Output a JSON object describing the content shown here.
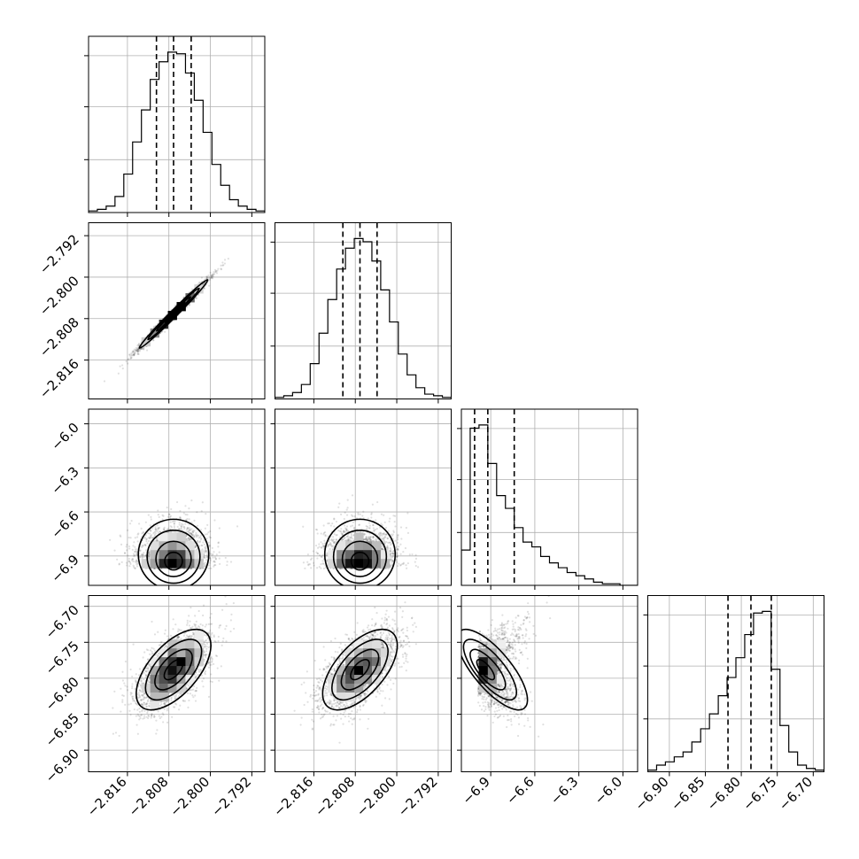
{
  "chart_data": {
    "type": "corner",
    "grid": true,
    "colors": {
      "hist": "#000000",
      "scatter": "#9a9a9a",
      "density": "#000000"
    },
    "parameters": [
      {
        "range": [
          -2.8235,
          -2.7895
        ],
        "ticks": [
          -2.816,
          -2.808,
          -2.8,
          -2.792
        ],
        "tick_labels": [
          "−2.816",
          "−2.808",
          "−2.800",
          "−2.792"
        ]
      },
      {
        "range": [
          -2.8235,
          -2.7895
        ],
        "ticks": [
          -2.816,
          -2.808,
          -2.8,
          -2.792
        ],
        "tick_labels": [
          "−2.816",
          "−2.808",
          "−2.800",
          "−2.792"
        ]
      },
      {
        "range": [
          -7.1,
          -5.9
        ],
        "ticks": [
          -6.9,
          -6.6,
          -6.3,
          -6.0
        ],
        "tick_labels": [
          "−6.9",
          "−6.6",
          "−6.3",
          "−6.0"
        ]
      },
      {
        "range": [
          -6.93,
          -6.685
        ],
        "ticks": [
          -6.9,
          -6.85,
          -6.8,
          -6.75,
          -6.7
        ],
        "tick_labels": [
          "−6.90",
          "−6.85",
          "−6.80",
          "−6.75",
          "−6.70"
        ]
      }
    ],
    "histograms": [
      {
        "param": 0,
        "bin_edges": [
          -2.8235,
          -2.8218,
          -2.8201,
          -2.8184,
          -2.8167,
          -2.815,
          -2.8133,
          -2.8116,
          -2.8099,
          -2.8082,
          -2.8065,
          -2.8048,
          -2.8031,
          -2.8014,
          -2.7997,
          -2.798,
          -2.7963,
          -2.7946,
          -2.7929,
          -2.7912,
          -2.7895
        ],
        "counts": [
          1,
          2,
          4,
          10,
          24,
          44,
          64,
          83,
          94,
          100,
          99,
          87,
          70,
          50,
          30,
          17,
          8,
          4,
          2,
          1
        ],
        "quantiles": [
          -2.8104,
          -2.8071,
          -2.8037
        ]
      },
      {
        "param": 1,
        "bin_edges": [
          -2.8235,
          -2.8218,
          -2.8201,
          -2.8184,
          -2.8167,
          -2.815,
          -2.8133,
          -2.8116,
          -2.8099,
          -2.8082,
          -2.8065,
          -2.8048,
          -2.8031,
          -2.8014,
          -2.7997,
          -2.798,
          -2.7963,
          -2.7946,
          -2.7929,
          -2.7912,
          -2.7895
        ],
        "counts": [
          1,
          2,
          4,
          9,
          22,
          41,
          62,
          81,
          94,
          100,
          98,
          86,
          68,
          48,
          28,
          15,
          7,
          3,
          2,
          1
        ],
        "quantiles": [
          -2.8104,
          -2.8071,
          -2.8038
        ]
      },
      {
        "param": 2,
        "bin_edges": [
          -7.1,
          -7.04,
          -6.98,
          -6.92,
          -6.86,
          -6.8,
          -6.74,
          -6.68,
          -6.62,
          -6.56,
          -6.5,
          -6.44,
          -6.38,
          -6.32,
          -6.26,
          -6.2,
          -6.14,
          -6.08,
          -6.02,
          -5.96,
          -5.9
        ],
        "counts": [
          22,
          98,
          100,
          76,
          56,
          48,
          36,
          27,
          24,
          18,
          14,
          11,
          8,
          6,
          4,
          2,
          1,
          1,
          0,
          0
        ],
        "quantiles": [
          -7.01,
          -6.92,
          -6.74
        ]
      },
      {
        "param": 3,
        "bin_edges": [
          -6.93,
          -6.91775,
          -6.9055,
          -6.89325,
          -6.881,
          -6.86875,
          -6.8565,
          -6.84425,
          -6.832,
          -6.81975,
          -6.8075,
          -6.79525,
          -6.783,
          -6.77075,
          -6.7585,
          -6.74625,
          -6.734,
          -6.72175,
          -6.7095,
          -6.69725,
          -6.685
        ],
        "counts": [
          1,
          4,
          6,
          9,
          12,
          18,
          26,
          35,
          46,
          57,
          69,
          83,
          96,
          97,
          62,
          28,
          12,
          4,
          2,
          1
        ],
        "quantiles": [
          -6.8185,
          -6.7866,
          -6.7583
        ]
      }
    ],
    "pairs": [
      {
        "x": 0,
        "y": 1,
        "center": [
          -2.8071,
          -2.8071
        ],
        "spread": [
          0.0033,
          0.0033
        ],
        "correlation": 0.99,
        "skew": [
          0,
          0
        ]
      },
      {
        "x": 0,
        "y": 2,
        "center": [
          -2.8071,
          -6.95
        ],
        "spread": [
          0.0034,
          0.12
        ],
        "correlation": 0.0,
        "skew": [
          0,
          1
        ]
      },
      {
        "x": 1,
        "y": 2,
        "center": [
          -2.8071,
          -6.95
        ],
        "spread": [
          0.0034,
          0.12
        ],
        "correlation": 0.0,
        "skew": [
          0,
          1
        ]
      },
      {
        "x": 0,
        "y": 3,
        "center": [
          -2.8071,
          -6.788
        ],
        "spread": [
          0.0036,
          0.028
        ],
        "correlation": 0.6,
        "skew": [
          0,
          0
        ]
      },
      {
        "x": 1,
        "y": 3,
        "center": [
          -2.8071,
          -6.788
        ],
        "spread": [
          0.0036,
          0.028
        ],
        "correlation": 0.6,
        "skew": [
          0,
          0
        ]
      },
      {
        "x": 2,
        "y": 3,
        "center": [
          -6.95,
          -6.788
        ],
        "spread": [
          0.12,
          0.028
        ],
        "correlation": -0.75,
        "skew": [
          1,
          0
        ]
      }
    ]
  }
}
